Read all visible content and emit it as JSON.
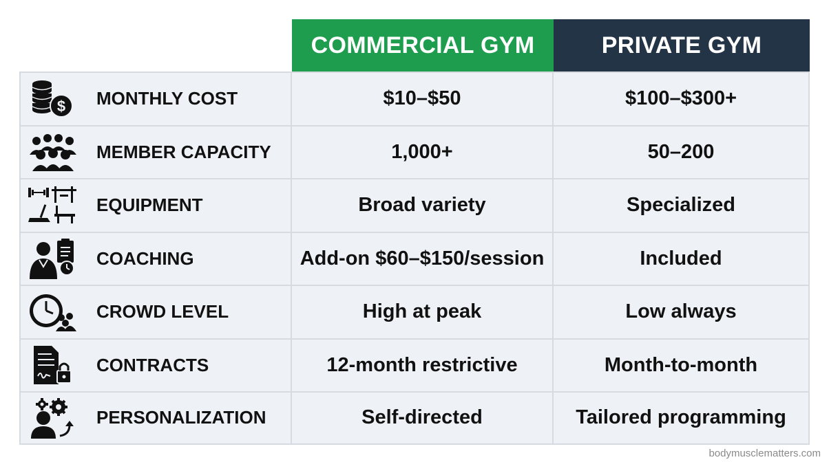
{
  "headers": {
    "commercial": "COMMERCIAL GYM",
    "private": "PRIVATE GYM"
  },
  "rows": [
    {
      "icon": "coins-dollar-icon",
      "label": "MONTHLY COST",
      "commercial": "$10–$50",
      "private": "$100–$300+"
    },
    {
      "icon": "crowd-people-icon",
      "label": "MEMBER CAPACITY",
      "commercial": "1,000+",
      "private": "50–200"
    },
    {
      "icon": "gym-equipment-icon",
      "label": "EQUIPMENT",
      "commercial": "Broad variety",
      "private": "Specialized"
    },
    {
      "icon": "coach-clipboard-icon",
      "label": "COACHING",
      "commercial": "Add-on $60–$150/session",
      "private": "Included"
    },
    {
      "icon": "clock-crowd-icon",
      "label": "CROWD LEVEL",
      "commercial": "High at peak",
      "private": "Low always"
    },
    {
      "icon": "contract-lock-icon",
      "label": "CONTRACTS",
      "commercial": "12-month restrictive",
      "private": "Month-to-month"
    },
    {
      "icon": "person-gears-icon",
      "label": "PERSONALIZATION",
      "commercial": "Self-directed",
      "private": "Tailored programming"
    }
  ],
  "watermark": "bodymusclematters.com",
  "colors": {
    "commercial_header": "#1f9d4f",
    "private_header": "#243447",
    "cell_background": "#eef1f5"
  }
}
